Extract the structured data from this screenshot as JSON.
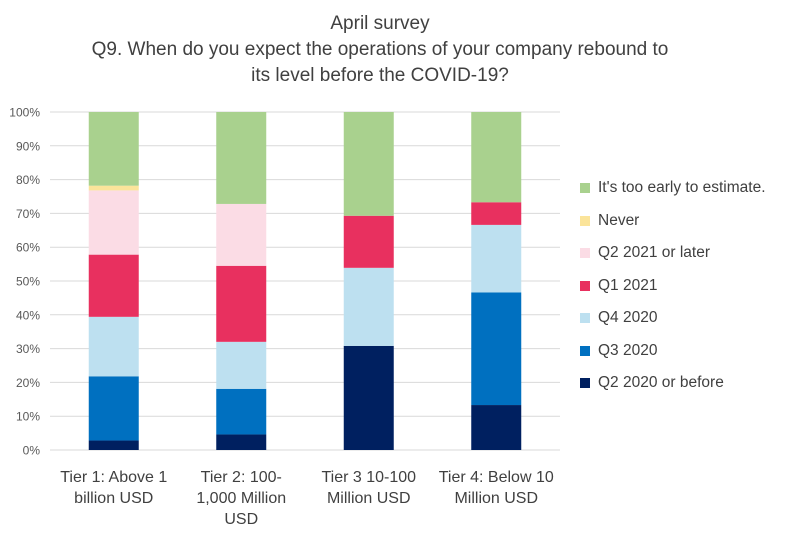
{
  "chart_data": {
    "type": "bar",
    "stacked": true,
    "title": "April survey",
    "subtitle": [
      "Q9. When do you expect the operations of your company rebound to",
      "its level before the COVID-19?"
    ],
    "categories": [
      [
        "Tier 1: Above 1",
        "billion USD"
      ],
      [
        "Tier 2: 100-",
        "1,000 Million",
        "USD"
      ],
      [
        "Tier 3 10-100",
        "Million USD"
      ],
      [
        "Tier 4: Below 10",
        "Million USD"
      ]
    ],
    "ylim": [
      0,
      100
    ],
    "yticks": [
      "0%",
      "10%",
      "20%",
      "30%",
      "40%",
      "50%",
      "60%",
      "70%",
      "80%",
      "90%",
      "100%"
    ],
    "grid": true,
    "legend_position": "right",
    "series": [
      {
        "name": "Q2 2020 or before",
        "color": "#002060",
        "values": [
          2.8,
          4.6,
          30.8,
          13.3
        ]
      },
      {
        "name": "Q3 2020",
        "color": "#0070C0",
        "values": [
          19.0,
          13.5,
          0,
          33.3
        ]
      },
      {
        "name": "Q4 2020",
        "color": "#BDE0F0",
        "values": [
          17.6,
          13.9,
          23.1,
          20.0
        ]
      },
      {
        "name": "Q1 2021",
        "color": "#E8305F",
        "values": [
          18.4,
          22.5,
          15.4,
          6.7
        ]
      },
      {
        "name": "Q2 2021 or later",
        "color": "#FBDCE5",
        "values": [
          19.0,
          18.3,
          0,
          0
        ]
      },
      {
        "name": "Never",
        "color": "#FBE49A",
        "values": [
          1.4,
          0,
          0,
          0
        ]
      },
      {
        "name": "It's too early to estimate.",
        "color": "#A9D18E",
        "values": [
          21.8,
          27.2,
          30.7,
          26.7
        ]
      }
    ]
  }
}
